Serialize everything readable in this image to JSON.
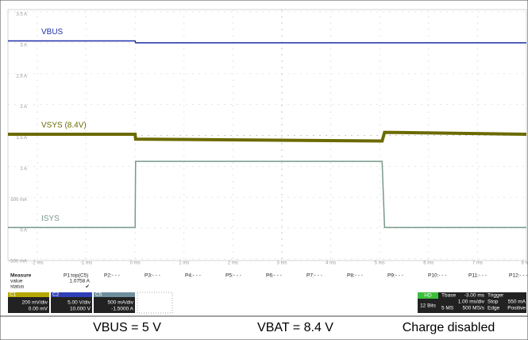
{
  "chart_data": {
    "type": "line",
    "xlim": [
      -2.6,
      8
    ],
    "ylim": [
      -0.5,
      3.5
    ],
    "xticks": [
      {
        "value": -2,
        "label": "-2 ms"
      },
      {
        "value": -1,
        "label": "-1 ms"
      },
      {
        "value": 0,
        "label": "0 ms"
      },
      {
        "value": 1,
        "label": "1 ms"
      },
      {
        "value": 2,
        "label": "2 ms"
      },
      {
        "value": 3,
        "label": "3 ms"
      },
      {
        "value": 4,
        "label": "4 ms"
      },
      {
        "value": 5,
        "label": "5 ms"
      },
      {
        "value": 6,
        "label": "6 ms"
      },
      {
        "value": 7,
        "label": "7 ms"
      },
      {
        "value": 8,
        "label": "8 ms"
      }
    ],
    "yticks": [
      {
        "value": 3.5,
        "label": "3.5 A"
      },
      {
        "value": 3,
        "label": "3 A"
      },
      {
        "value": 2.5,
        "label": "2.5 A"
      },
      {
        "value": 2,
        "label": "2 A"
      },
      {
        "value": 1.5,
        "label": "1.5 A"
      },
      {
        "value": 1,
        "label": "1 A"
      },
      {
        "value": 0.5,
        "label": "500 mA"
      },
      {
        "value": 0,
        "label": "0 A"
      },
      {
        "value": -0.5,
        "label": "-500 mA"
      }
    ],
    "grid": true,
    "x": [
      -2.6,
      0,
      0.01,
      5.05,
      5.1,
      8
    ],
    "series": [
      {
        "name": "VBUS",
        "color": "#1f2fa8",
        "values": [
          3.03,
          3.03,
          3.0,
          3.0,
          3.0,
          3.0
        ]
      },
      {
        "name": "VSYS (8.4V)",
        "color": "#6b6a00",
        "values": [
          1.52,
          1.52,
          1.44,
          1.41,
          1.55,
          1.52
        ]
      },
      {
        "name": "ISYS",
        "color": "#7a9a8a",
        "values": [
          0.01,
          0.01,
          1.08,
          1.08,
          0.01,
          0.01
        ]
      }
    ]
  },
  "measure": {
    "title": "Measure",
    "params": [
      "P1:top(C5)",
      "P2:- - -",
      "P3:- - -",
      "P4:- - -",
      "P5:- - -",
      "P6:- - -",
      "P7:- - -",
      "P8:- - -",
      "P9:- - -",
      "P10:- - -",
      "P11:- - -",
      "P12:- - -"
    ],
    "rows": [
      [
        "value",
        "1.0758 A"
      ],
      [
        "status",
        "✔"
      ]
    ]
  },
  "channels": [
    {
      "name": "C1",
      "scale": "200 mV/div",
      "offset": "0.00 mV",
      "color": "#b5a800"
    },
    {
      "name": "C2",
      "scale": "5.00 V/div",
      "offset": "10.000 V",
      "color": "#2f3fb8"
    },
    {
      "name": "C5",
      "scale": "500 mA/div",
      "offset": "-1.5000 A",
      "color": "#6f8f9f"
    }
  ],
  "acquisition": {
    "mode": "HD",
    "bits": "12 Bits",
    "tbase": "Tbase",
    "delay": "-3.00 ms",
    "div": "1.00 ms/div",
    "points": "5 MS",
    "rate": "500 MS/s",
    "trigger": "Trigger",
    "state": "Stop",
    "kind": "Edge",
    "level": "550 mA",
    "slope": "Positive"
  },
  "caption": [
    "VBUS = 5 V",
    "VBAT = 8.4 V",
    "Charge disabled"
  ]
}
